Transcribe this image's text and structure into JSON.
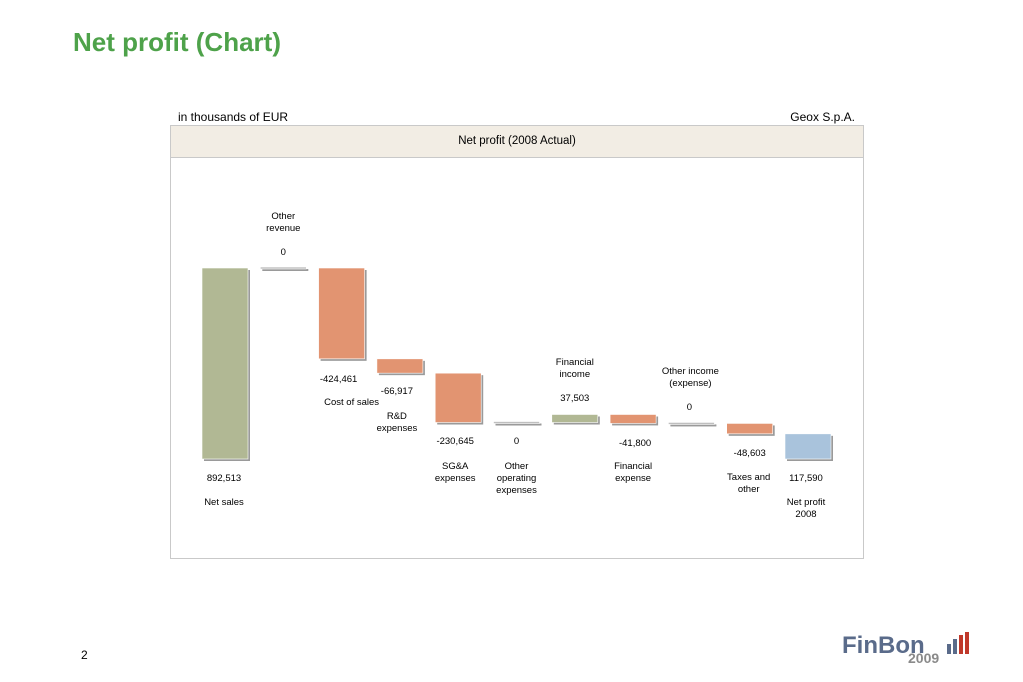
{
  "title": "Net profit (Chart)",
  "unit_label": "in thousands of EUR",
  "company": "Geox S.p.A.",
  "page_number": "2",
  "logo": {
    "name": "FinBon",
    "year": "2009"
  },
  "colors": {
    "title": "#4ea24a",
    "total_bar": "#b1b894",
    "decrease_bar": "#e29471",
    "increase_bar": "#b1b894",
    "zero_bar": "#bfbfbf",
    "net_profit_bar": "#a9c3dc"
  },
  "chart_data": {
    "type": "waterfall",
    "title": "Net profit (2008 Actual)",
    "steps": [
      {
        "label": [
          "Net sales"
        ],
        "value": 892513,
        "value_label": "892,513",
        "kind": "total"
      },
      {
        "label": [
          "Other",
          "revenue"
        ],
        "value": 0,
        "value_label": "0",
        "kind": "delta"
      },
      {
        "label": [
          "Cost of sales"
        ],
        "value": -424461,
        "value_label": "-424,461",
        "kind": "delta"
      },
      {
        "label": [
          "R&D",
          "expenses"
        ],
        "value": -66917,
        "value_label": "-66,917",
        "kind": "delta"
      },
      {
        "label": [
          "SG&A",
          "expenses"
        ],
        "value": -230645,
        "value_label": "-230,645",
        "kind": "delta"
      },
      {
        "label": [
          "Other",
          "operating",
          "expenses"
        ],
        "value": 0,
        "value_label": "0",
        "kind": "delta"
      },
      {
        "label": [
          "Financial",
          "income"
        ],
        "value": 37503,
        "value_label": "37,503",
        "kind": "delta"
      },
      {
        "label": [
          "Financial",
          "expense"
        ],
        "value": -41800,
        "value_label": "-41,800",
        "kind": "delta"
      },
      {
        "label": [
          "Other income",
          "(expense)"
        ],
        "value": 0,
        "value_label": "0",
        "kind": "delta"
      },
      {
        "label": [
          "Taxes and",
          "other"
        ],
        "value": -48603,
        "value_label": "-48,603",
        "kind": "delta"
      },
      {
        "label": [
          "Net profit",
          "2008"
        ],
        "value": 117590,
        "value_label": "117,590",
        "kind": "total"
      }
    ],
    "ylim": [
      0,
      892513
    ]
  }
}
